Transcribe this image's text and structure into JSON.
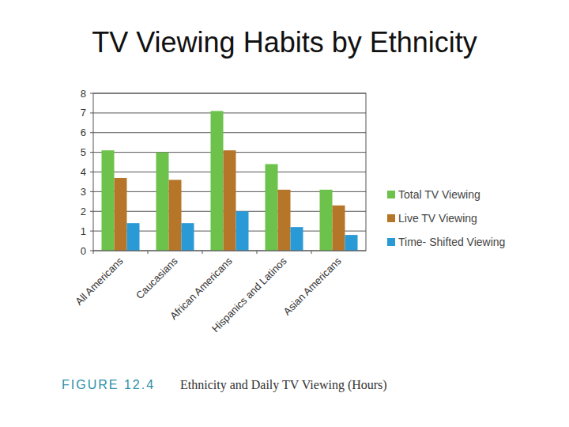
{
  "chart_data": {
    "type": "bar",
    "title": "TV Viewing Habits by Ethnicity",
    "annotations": [
      "FIGURE 12.4",
      "Ethnicity and Daily TV Viewing (Hours)"
    ],
    "categories": [
      "All Americans",
      "Caucasians",
      "African Americans",
      "Hispanics and Latinos",
      "Asian Americans"
    ],
    "series": [
      {
        "name": "Total TV Viewing",
        "color": "#6cc24a",
        "values": [
          5.1,
          5.0,
          7.1,
          4.4,
          3.1
        ]
      },
      {
        "name": "Live TV Viewing",
        "color": "#b5762a",
        "values": [
          3.7,
          3.6,
          5.1,
          3.1,
          2.3
        ]
      },
      {
        "name": "Time- Shifted Viewing",
        "color": "#2a9ad6",
        "values": [
          1.4,
          1.4,
          2.0,
          1.2,
          0.8
        ]
      }
    ],
    "ylim": [
      0,
      8
    ],
    "yticks": [
      0,
      1,
      2,
      3,
      4,
      5,
      6,
      7,
      8
    ],
    "grid": true,
    "legend": "right"
  }
}
